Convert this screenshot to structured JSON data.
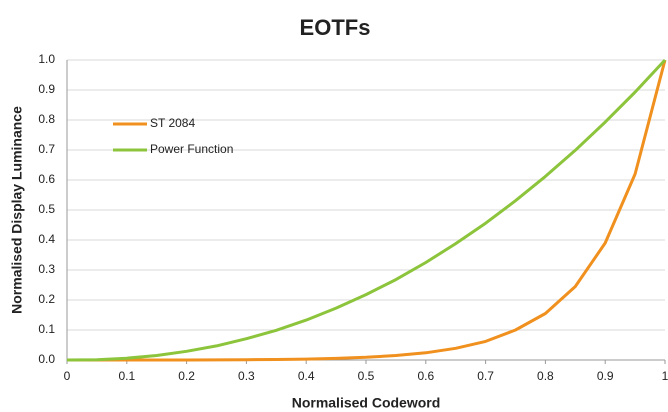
{
  "chart_data": {
    "type": "line",
    "title": "EOTFs",
    "x_label": "Normalised Codeword",
    "y_label": "Normalised Display Luminance",
    "x": [
      0,
      0.05,
      0.1,
      0.15,
      0.2,
      0.25,
      0.3,
      0.35,
      0.4,
      0.45,
      0.5,
      0.55,
      0.6,
      0.65,
      0.7,
      0.75,
      0.8,
      0.85,
      0.9,
      0.95,
      1
    ],
    "series": [
      {
        "name": "ST 2084",
        "color": "#f0901e",
        "values": [
          0,
          0,
          0,
          0.0001,
          0.0002,
          0.0005,
          0.001,
          0.0018,
          0.003,
          0.0055,
          0.009,
          0.015,
          0.024,
          0.039,
          0.062,
          0.1,
          0.155,
          0.245,
          0.39,
          0.62,
          1
        ]
      },
      {
        "name": "Power Function",
        "color": "#8cc43c",
        "values": [
          0,
          0.001,
          0.006,
          0.015,
          0.029,
          0.047,
          0.071,
          0.099,
          0.133,
          0.173,
          0.218,
          0.268,
          0.325,
          0.388,
          0.456,
          0.531,
          0.612,
          0.699,
          0.793,
          0.893,
          1
        ]
      }
    ],
    "xlim": [
      0,
      1
    ],
    "xticks": [
      0,
      0.1,
      0.2,
      0.3,
      0.4,
      0.5,
      0.6,
      0.7,
      0.8,
      0.9,
      1
    ],
    "ylim": [
      0,
      1
    ],
    "yticks": [
      {
        "value": 0,
        "label": "0.0"
      },
      0.1,
      0.2,
      0.3,
      0.4,
      0.5,
      0.6,
      0.7,
      0.8,
      0.9,
      {
        "value": 1,
        "label": "1.0"
      }
    ],
    "grid": true,
    "legend": "upper left"
  }
}
